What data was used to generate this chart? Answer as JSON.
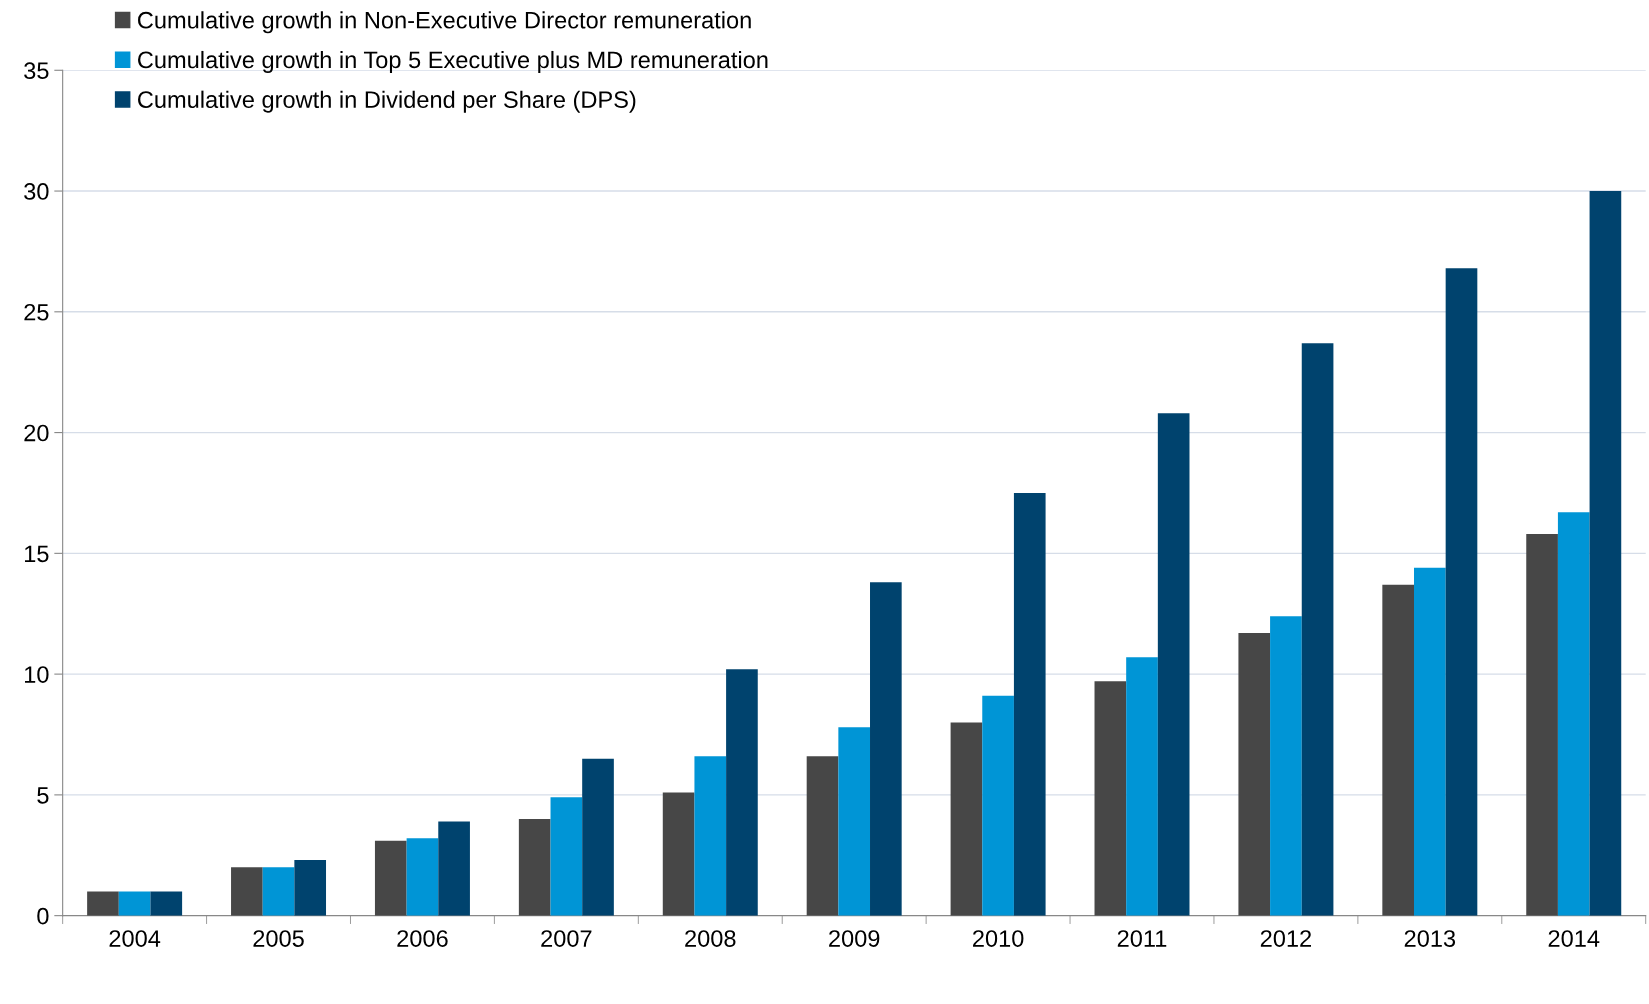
{
  "chart_data": {
    "type": "bar",
    "categories": [
      "2004",
      "2005",
      "2006",
      "2007",
      "2008",
      "2009",
      "2010",
      "2011",
      "2012",
      "2013",
      "2014"
    ],
    "series": [
      {
        "name": "Cumulative growth in Non-Executive Director remuneration",
        "color": "#474747",
        "values": [
          1.0,
          2.0,
          3.1,
          4.0,
          5.1,
          6.6,
          8.0,
          9.7,
          11.7,
          13.7,
          15.8
        ]
      },
      {
        "name": "Cumulative growth in Top 5 Executive plus MD remuneration",
        "color": "#0095d6",
        "values": [
          1.0,
          2.0,
          3.2,
          4.9,
          6.6,
          7.8,
          9.1,
          10.7,
          12.4,
          14.4,
          16.7
        ]
      },
      {
        "name": "Cumulative growth in Dividend per Share (DPS)",
        "color": "#00436e",
        "values": [
          1.0,
          2.3,
          3.9,
          6.5,
          10.2,
          13.8,
          17.5,
          20.8,
          23.7,
          26.8,
          30.0
        ]
      }
    ],
    "ylim": [
      0,
      35
    ],
    "yticks": [
      0,
      5,
      10,
      15,
      20,
      25,
      30,
      35
    ],
    "grid": "y",
    "legend": "top left"
  }
}
